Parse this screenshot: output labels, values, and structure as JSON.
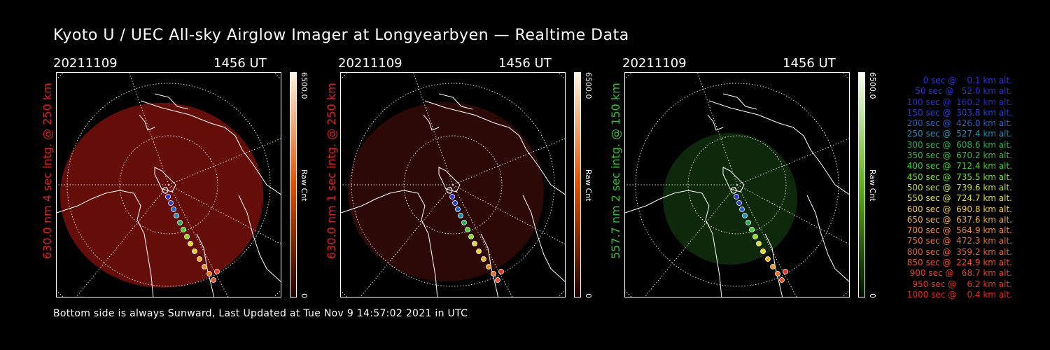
{
  "title": "Kyoto U / UEC All-sky Airglow Imager at Longyearbyen — Realtime Data",
  "footer": "Bottom side is always Sunward, Last Updated at Tue Nov  9 14:57:02 2021 in UTC",
  "panels": [
    {
      "date": "20211109",
      "time": "1456 UT",
      "side_label": "630.0 nm 4 sec intg. @ 250 km",
      "label_color": "#e02020",
      "cbar_max": "6500.0",
      "cbar_unit": "Raw Cnt",
      "cbar_min": "0",
      "cbar_top": "#fff4e0",
      "cbar_mid": "#e05000",
      "cbar_bottom": "#200000",
      "glow": "#6a0f0a",
      "glow_opacity": 0.95
    },
    {
      "date": "20211109",
      "time": "1456 UT",
      "side_label": "630.0 nm 1 sec intg. @ 250 km",
      "label_color": "#e02020",
      "cbar_max": "6500.0",
      "cbar_unit": "Raw Cnt",
      "cbar_min": "0",
      "cbar_top": "#fff4e0",
      "cbar_mid": "#e05000",
      "cbar_bottom": "#200000",
      "glow": "#2e0807",
      "glow_opacity": 0.95
    },
    {
      "date": "20211109",
      "time": "1456 UT",
      "side_label": "557.7 nm 2 sec intg. @ 150 km",
      "label_color": "#30c030",
      "cbar_max": "6500.0",
      "cbar_unit": "Raw Cnt",
      "cbar_min": "0",
      "cbar_top": "#f8fff0",
      "cbar_mid": "#60b020",
      "cbar_bottom": "#001000",
      "glow": "#0f2a0c",
      "glow_opacity": 0.95
    }
  ],
  "legend": [
    {
      "text": "   0 sec @    0.1 km alt.",
      "color": "#3030e0"
    },
    {
      "text": "  50 sec @   52.0 km alt.",
      "color": "#3030e0"
    },
    {
      "text": " 100 sec @  160.2 km alt.",
      "color": "#2828d8"
    },
    {
      "text": " 150 sec @  303.8 km alt.",
      "color": "#2840d0"
    },
    {
      "text": " 200 sec @  426.0 km alt.",
      "color": "#2060d0"
    },
    {
      "text": " 250 sec @  527.4 km alt.",
      "color": "#2090b0"
    },
    {
      "text": " 300 sec @  608.6 km alt.",
      "color": "#20b060"
    },
    {
      "text": " 350 sec @  670.2 km alt.",
      "color": "#30c040"
    },
    {
      "text": " 400 sec @  712.4 km alt.",
      "color": "#40d030"
    },
    {
      "text": " 450 sec @  735.5 km alt.",
      "color": "#80e020"
    },
    {
      "text": " 500 sec @  739.6 km alt.",
      "color": "#c0e020"
    },
    {
      "text": " 550 sec @  724.7 km alt.",
      "color": "#e0e020"
    },
    {
      "text": " 600 sec @  690.8 km alt.",
      "color": "#f0d020"
    },
    {
      "text": " 650 sec @  637.6 km alt.",
      "color": "#f0b020"
    },
    {
      "text": " 700 sec @  564.9 km alt.",
      "color": "#f09020"
    },
    {
      "text": " 750 sec @  472.3 km alt.",
      "color": "#f07020"
    },
    {
      "text": " 800 sec @  359.2 km alt.",
      "color": "#f06020"
    },
    {
      "text": " 850 sec @  224.9 km alt.",
      "color": "#f05020"
    },
    {
      "text": " 900 sec @   68.7 km alt.",
      "color": "#f04020"
    },
    {
      "text": " 950 sec @    6.2 km alt.",
      "color": "#f03020"
    },
    {
      "text": "1000 sec @    0.4 km alt.",
      "color": "#f02020"
    }
  ]
}
